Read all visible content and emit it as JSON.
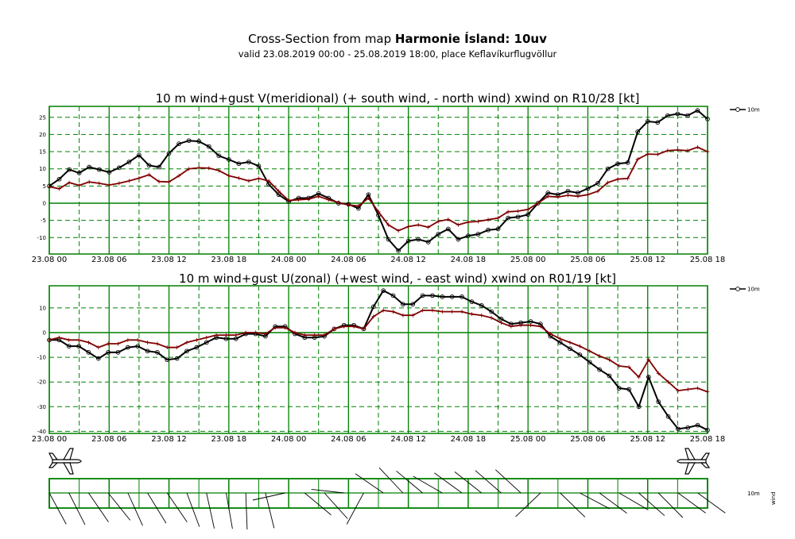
{
  "header": {
    "title_prefix": "Cross-Section from map ",
    "title_bold": "Harmonie Ísland: 10uv",
    "subtitle": "valid 23.08.2019 00:00 - 25.08.2019 18:00, place Keflavíkurflugvöllur"
  },
  "colors": {
    "grid": "#008000",
    "wind": "#000000",
    "xwind": "#800000",
    "barb": "#000000"
  },
  "chart_data": [
    {
      "type": "line",
      "title": "10 m wind+gust V(meridional) (+ south wind, - north wind) xwind on R10/28 [kt]",
      "x_ticks": [
        "23.08 00",
        "23.08 06",
        "23.08 12",
        "23.08 18",
        "24.08 00",
        "24.08 06",
        "24.08 12",
        "24.08 18",
        "25.08 00",
        "25.08 06",
        "25.08 12",
        "25.08 18"
      ],
      "y_ticks": [
        25,
        20,
        15,
        10,
        5,
        0,
        -5,
        -10
      ],
      "ylim": [
        -15,
        28
      ],
      "legend": "10m",
      "series": [
        {
          "name": "10m",
          "values": [
            5,
            7,
            9.8,
            8.8,
            10.5,
            9.8,
            9,
            10.3,
            12,
            14,
            11,
            10.5,
            14.5,
            17.3,
            18.2,
            18,
            16.5,
            13.8,
            12.7,
            11.5,
            12,
            10.8,
            5.5,
            2.5,
            0.5,
            1.5,
            1.5,
            2.8,
            1.5,
            0,
            -0.3,
            -1.5,
            2.5,
            -3.5,
            -10.5,
            -13.8,
            -11,
            -10.5,
            -11.3,
            -9,
            -7.5,
            -10.5,
            -9.5,
            -9,
            -7.8,
            -7.5,
            -4.3,
            -4,
            -3.3,
            0,
            3,
            2.5,
            3.5,
            3,
            4.3,
            5.8,
            10,
            11.5,
            11.8,
            20.8,
            23.8,
            23.5,
            25.5,
            26,
            25.5,
            27,
            24.5
          ]
        },
        {
          "name": "",
          "values": [
            4.8,
            4.2,
            6,
            5.2,
            6.2,
            5.8,
            5.3,
            5.8,
            6.5,
            7.3,
            8.3,
            6.3,
            6.2,
            8,
            10,
            10.3,
            10.2,
            9.5,
            8,
            7.3,
            6.5,
            7.2,
            6.5,
            3.5,
            0.8,
            1,
            1.2,
            2,
            1,
            0.2,
            -0.5,
            -0.8,
            1.5,
            -2.5,
            -6.3,
            -8,
            -6.8,
            -6.3,
            -7,
            -5.3,
            -4.7,
            -6.3,
            -5.5,
            -5.3,
            -4.8,
            -4.3,
            -2.5,
            -2.3,
            -1.8,
            0,
            2,
            1.8,
            2.3,
            2,
            2.5,
            3.5,
            6,
            7,
            7.2,
            12.8,
            14.3,
            14.2,
            15.3,
            15.5,
            15.3,
            16.3,
            15
          ]
        }
      ]
    },
    {
      "type": "line",
      "title": "10 m wind+gust U(zonal) (+west wind, - east wind) xwind on R01/19 [kt]",
      "x_ticks": [
        "23.08 00",
        "23.08 06",
        "23.08 12",
        "23.08 18",
        "24.08 00",
        "24.08 06",
        "24.08 12",
        "24.08 18",
        "25.08 00",
        "25.08 06",
        "25.08 12",
        "25.08 18"
      ],
      "y_ticks": [
        10,
        0,
        -10,
        -20,
        -30,
        -40
      ],
      "ylim": [
        -41,
        19
      ],
      "legend": "10m",
      "series": [
        {
          "name": "10m",
          "values": [
            -3,
            -3,
            -5.5,
            -5.5,
            -8,
            -10.5,
            -8,
            -8,
            -6,
            -5.5,
            -7.5,
            -8,
            -11,
            -10.5,
            -7.5,
            -6,
            -4,
            -2,
            -2.5,
            -2.5,
            -0.5,
            -0.5,
            -1.5,
            2.5,
            2.5,
            -0.5,
            -2,
            -2,
            -1.5,
            1.5,
            3,
            3,
            1.5,
            10.5,
            17,
            15,
            11.5,
            11.5,
            15,
            15,
            14.5,
            14.5,
            14.5,
            12.5,
            11,
            8.5,
            5.5,
            3.5,
            4,
            4.5,
            3.5,
            -1.5,
            -4,
            -6.5,
            -9,
            -12,
            -15,
            -17.5,
            -22.5,
            -23,
            -30,
            -18,
            -28,
            -34,
            -39,
            -38.5,
            -37.5,
            -39.5
          ]
        },
        {
          "name": "",
          "values": [
            -3,
            -2,
            -3,
            -3,
            -4,
            -6,
            -4.5,
            -4.5,
            -3,
            -3,
            -4,
            -4.5,
            -6,
            -6,
            -4,
            -3,
            -2,
            -1,
            -1,
            -1,
            0,
            0,
            -0.5,
            2,
            2,
            0,
            -1,
            -1,
            -1,
            1.5,
            2.5,
            2.5,
            1.5,
            6.5,
            9,
            8.5,
            7,
            7,
            9,
            9,
            8.5,
            8.5,
            8.5,
            7.5,
            7,
            6,
            4,
            2.5,
            3,
            3,
            2.5,
            -0.5,
            -2.5,
            -4,
            -5.5,
            -7.5,
            -9.5,
            -11,
            -13.5,
            -14,
            -18,
            -11,
            -16.5,
            -20,
            -23.5,
            -23,
            -22.5,
            -24
          ]
        }
      ]
    }
  ],
  "barb_panel": {
    "legend_level": "10m",
    "legend_label": "wind"
  }
}
